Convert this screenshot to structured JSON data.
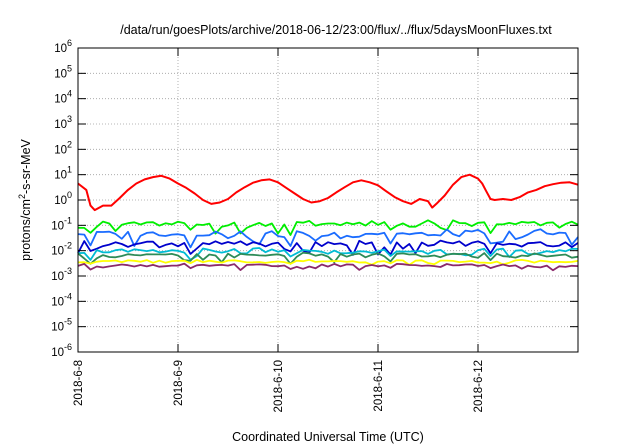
{
  "chart_data": {
    "type": "line",
    "title": "/data/run/goesPlots/archive/2018-06-12/23:00/flux/../flux/5daysMoonFluxes.txt",
    "xlabel": "Coordinated Universal Time (UTC)",
    "ylabel_main": "protons/cm",
    "ylabel_sup": "2",
    "ylabel_rest": "-s-sr-MeV",
    "yscale": "log",
    "ylim": [
      1e-06,
      1000000.0
    ],
    "yticks": [
      {
        "base": "10",
        "exp": "-6"
      },
      {
        "base": "10",
        "exp": "-5"
      },
      {
        "base": "10",
        "exp": "-4"
      },
      {
        "base": "10",
        "exp": "-3"
      },
      {
        "base": "10",
        "exp": "-2"
      },
      {
        "base": "10",
        "exp": "-1"
      },
      {
        "base": "10",
        "exp": "0"
      },
      {
        "base": "10",
        "exp": "1"
      },
      {
        "base": "10",
        "exp": "2"
      },
      {
        "base": "10",
        "exp": "3"
      },
      {
        "base": "10",
        "exp": "4"
      },
      {
        "base": "10",
        "exp": "5"
      },
      {
        "base": "10",
        "exp": "6"
      }
    ],
    "xlim": [
      "2018-06-08 00:00",
      "2018-06-13 00:00"
    ],
    "xticks": [
      "2018-6-8",
      "2018-6-9",
      "2018-6-10",
      "2018-6-11",
      "2018-6-12"
    ],
    "grid": true,
    "legend": "none",
    "series": [
      {
        "color": "#ff0000",
        "points": [
          [
            "2018-06-08 00:00",
            4.5
          ],
          [
            "2018-06-08 02:00",
            2.5
          ],
          [
            "2018-06-08 03:00",
            0.6
          ],
          [
            "2018-06-08 04:00",
            0.4
          ],
          [
            "2018-06-08 06:00",
            0.6
          ],
          [
            "2018-06-08 08:00",
            0.6
          ],
          [
            "2018-06-08 10:00",
            1.2
          ],
          [
            "2018-06-08 12:00",
            2.5
          ],
          [
            "2018-06-08 14:00",
            4.5
          ],
          [
            "2018-06-08 16:00",
            6.5
          ],
          [
            "2018-06-08 18:00",
            8.0
          ],
          [
            "2018-06-08 20:00",
            9.0
          ],
          [
            "2018-06-08 22:00",
            7.0
          ],
          [
            "2018-06-09 00:00",
            4.5
          ],
          [
            "2018-06-09 02:00",
            3.0
          ],
          [
            "2018-06-09 04:00",
            1.8
          ],
          [
            "2018-06-09 06:00",
            1.0
          ],
          [
            "2018-06-09 08:00",
            0.7
          ],
          [
            "2018-06-09 10:00",
            0.8
          ],
          [
            "2018-06-09 12:00",
            1.1
          ],
          [
            "2018-06-09 14:00",
            2.0
          ],
          [
            "2018-06-09 16:00",
            3.2
          ],
          [
            "2018-06-09 18:00",
            4.8
          ],
          [
            "2018-06-09 20:00",
            6.0
          ],
          [
            "2018-06-09 22:00",
            6.5
          ],
          [
            "2018-06-10 00:00",
            5.0
          ],
          [
            "2018-06-10 02:00",
            3.0
          ],
          [
            "2018-06-10 04:00",
            1.8
          ],
          [
            "2018-06-10 06:00",
            1.1
          ],
          [
            "2018-06-10 08:00",
            0.8
          ],
          [
            "2018-06-10 10:00",
            0.9
          ],
          [
            "2018-06-10 12:00",
            1.2
          ],
          [
            "2018-06-10 14:00",
            2.0
          ],
          [
            "2018-06-10 16:00",
            3.2
          ],
          [
            "2018-06-10 18:00",
            5.0
          ],
          [
            "2018-06-10 20:00",
            6.0
          ],
          [
            "2018-06-10 22:00",
            5.0
          ],
          [
            "2018-06-11 00:00",
            3.8
          ],
          [
            "2018-06-11 02:00",
            2.2
          ],
          [
            "2018-06-11 04:00",
            1.3
          ],
          [
            "2018-06-11 06:00",
            0.9
          ],
          [
            "2018-06-11 08:00",
            0.7
          ],
          [
            "2018-06-11 10:00",
            1.1
          ],
          [
            "2018-06-11 12:00",
            0.9
          ],
          [
            "2018-06-11 13:00",
            0.5
          ],
          [
            "2018-06-11 14:00",
            0.7
          ],
          [
            "2018-06-11 16:00",
            1.5
          ],
          [
            "2018-06-11 18:00",
            4.0
          ],
          [
            "2018-06-11 20:00",
            8.0
          ],
          [
            "2018-06-11 22:00",
            10.0
          ],
          [
            "2018-06-12 00:00",
            7.0
          ],
          [
            "2018-06-12 01:00",
            4.5
          ],
          [
            "2018-06-12 02:00",
            2.2
          ],
          [
            "2018-06-12 03:00",
            1.1
          ],
          [
            "2018-06-12 04:00",
            1.0
          ],
          [
            "2018-06-12 06:00",
            1.1
          ],
          [
            "2018-06-12 08:00",
            1.0
          ],
          [
            "2018-06-12 10:00",
            1.3
          ],
          [
            "2018-06-12 12:00",
            2.0
          ],
          [
            "2018-06-12 14:00",
            2.5
          ],
          [
            "2018-06-12 16:00",
            3.5
          ],
          [
            "2018-06-12 18:00",
            4.2
          ],
          [
            "2018-06-12 20:00",
            4.8
          ],
          [
            "2018-06-12 22:00",
            5.0
          ],
          [
            "2018-06-13 00:00",
            4.0
          ]
        ]
      },
      {
        "color": "#00ee00",
        "base": 0.11,
        "amp": 0.7
      },
      {
        "color": "#1a6cff",
        "base": 0.045,
        "amp": 0.8
      },
      {
        "color": "#0000cc",
        "base": 0.018,
        "amp": 0.7
      },
      {
        "color": "#00bcd4",
        "base": 0.009,
        "amp": 0.55
      },
      {
        "color": "#2e8b57",
        "base": 0.0065,
        "amp": 0.5
      },
      {
        "color": "#ffff00",
        "base": 0.0038,
        "amp": 0.25
      },
      {
        "color": "#8b2a6b",
        "base": 0.0026,
        "amp": 0.3
      }
    ]
  }
}
